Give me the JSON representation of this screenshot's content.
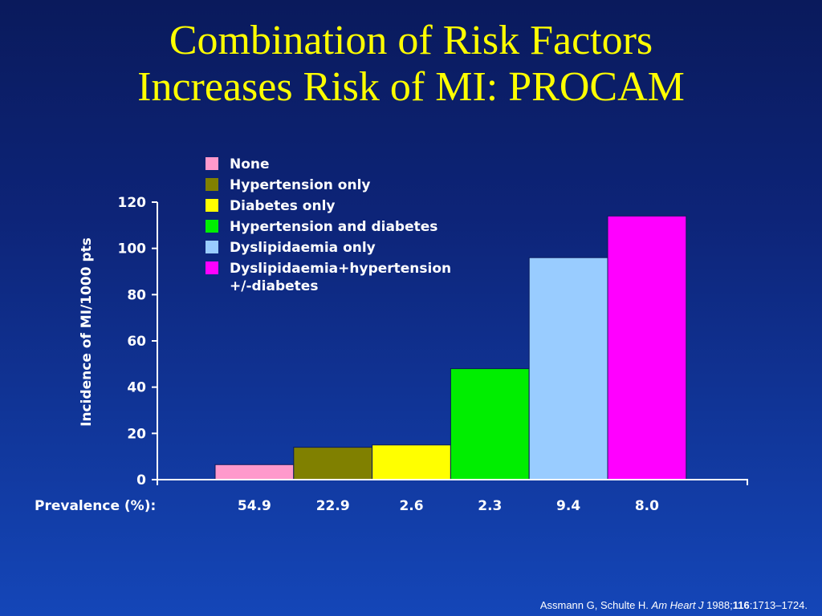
{
  "title_line1": "Combination of Risk Factors",
  "title_line2": "Increases Risk of MI: PROCAM",
  "chart_data": {
    "type": "bar",
    "title": "Combination of Risk Factors Increases Risk of MI: PROCAM",
    "categories": [
      "None",
      "Hypertension only",
      "Diabetes only",
      "Hypertension and diabetes",
      "Dyslipidaemia only",
      "Dyslipidaemia+hypertension\n+/-diabetes"
    ],
    "values": [
      6.5,
      14,
      15,
      48,
      96,
      114
    ],
    "colors": [
      "#ff99cc",
      "#808000",
      "#ffff00",
      "#00ee00",
      "#99ccff",
      "#ff00ff"
    ],
    "ylabel": "Incidence of MI/1000 pts",
    "xlabel": "",
    "ylim": [
      0,
      120
    ],
    "yticks": [
      0,
      20,
      40,
      60,
      80,
      100,
      120
    ],
    "grid": false,
    "legend_position": "top-left"
  },
  "prevalence": {
    "label": "Prevalence (%):",
    "values": [
      "54.9",
      "22.9",
      "2.6",
      "2.3",
      "9.4",
      "8.0"
    ]
  },
  "citation": {
    "authors": "Assmann G, Schulte H. ",
    "journal": "Am Heart J",
    "year": " 1988;",
    "volume": "116",
    "pages": ":1713–1724."
  }
}
